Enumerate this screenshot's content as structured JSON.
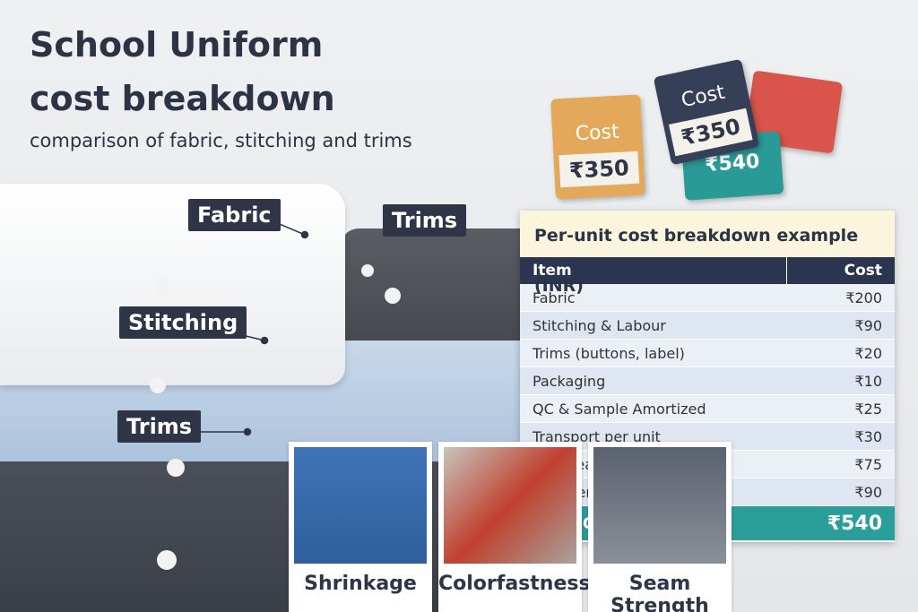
{
  "header": {
    "title_line1": "School Uniform",
    "title_line2": "cost breakdown",
    "subtitle": "comparison of fabric, stitching and trims"
  },
  "callouts": [
    "Fabric",
    "Trims",
    "Stitching",
    "Trims"
  ],
  "tags": [
    {
      "label": "Cost",
      "price": "₹350"
    },
    {
      "label": "Cost",
      "price": "₹350"
    },
    {
      "price": "₹540"
    }
  ],
  "table": {
    "title": "Per-unit cost breakdown example (INR)",
    "columns": [
      "Item",
      "Cost"
    ],
    "rows": [
      [
        "Fabric",
        "₹200"
      ],
      [
        "Stitching & Labour",
        "₹90"
      ],
      [
        "Trims (buttons, label)",
        "₹20"
      ],
      [
        "Packaging",
        "₹10"
      ],
      [
        "QC & Sample Amortized",
        "₹25"
      ],
      [
        "Transport per unit",
        "₹30"
      ],
      [
        "Overhead (20%)",
        "₹75"
      ],
      [
        "Supplier Margin (20%)",
        "₹90"
      ]
    ],
    "total": [
      "Final Cost",
      "₹540"
    ]
  },
  "tests": [
    "Shrinkage",
    "Colorfastness",
    "Seam Strength"
  ]
}
